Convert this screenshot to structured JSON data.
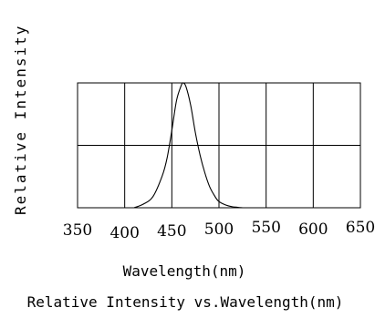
{
  "chart_data": {
    "type": "line",
    "ylabel": "Relative Intensity",
    "xlabel": "Wavelength(nm)",
    "title": "Relative Intensity vs.Wavelength(nm)",
    "xlim": [
      350,
      650
    ],
    "ylim": [
      0,
      1
    ],
    "x_ticks": [
      "350",
      "400",
      "450",
      "500",
      "550",
      "600",
      "650"
    ],
    "grid": true,
    "series": [
      {
        "color": "#000000",
        "x": [
          410,
          420,
          430,
          440,
          445,
          450,
          455,
          460,
          462,
          465,
          470,
          475,
          480,
          485,
          490,
          495,
          500,
          510,
          520,
          525
        ],
        "y": [
          0.0,
          0.03,
          0.09,
          0.26,
          0.4,
          0.62,
          0.86,
          0.98,
          1.0,
          0.97,
          0.82,
          0.6,
          0.42,
          0.28,
          0.17,
          0.1,
          0.05,
          0.015,
          0.003,
          0.0
        ]
      }
    ]
  }
}
